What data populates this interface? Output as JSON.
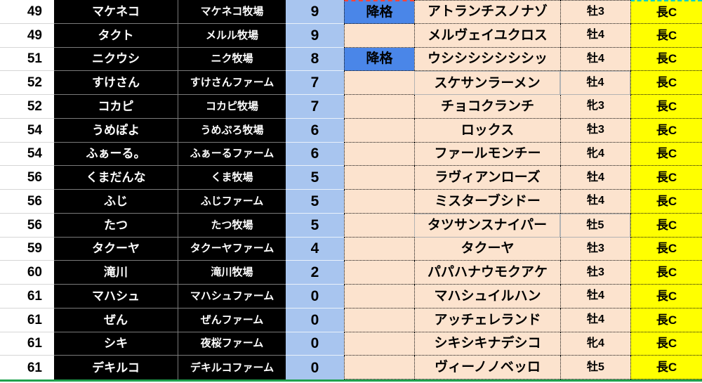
{
  "colors": {
    "player_cell_bg": "#000000",
    "player_cell_text": "#ffffff",
    "points_bg": "#a8c5ef",
    "demotion_bg": "#4a86e8",
    "peach_bg": "#fce3ce",
    "class_bg": "#ffff00",
    "sheet_boundary_green": "#1fa14d",
    "top_dash_red": "#ff4438",
    "top_dash_cyan": "#00d2c2"
  },
  "table": {
    "columns": [
      "rank",
      "player_name",
      "farm_name",
      "points",
      "status",
      "horse_name",
      "sex_age",
      "class"
    ],
    "demotion_label": "降格",
    "rows": [
      {
        "rank": "49",
        "player": "マケネコ",
        "farm": "マケネコ牧場",
        "points": "9",
        "status": "降格",
        "horse": "アトランチスノナゾ",
        "sex_age": "牡3",
        "class": "長C"
      },
      {
        "rank": "49",
        "player": "タクト",
        "farm": "メルル牧場",
        "points": "9",
        "status": "",
        "horse": "メルヴェイユクロス",
        "sex_age": "牡4",
        "class": "長C"
      },
      {
        "rank": "51",
        "player": "ニクウシ",
        "farm": "ニク牧場",
        "points": "8",
        "status": "降格",
        "horse": "ウシシシシシシシッ",
        "sex_age": "牡4",
        "class": "長C"
      },
      {
        "rank": "52",
        "player": "すけさん",
        "farm": "すけさんファーム",
        "points": "7",
        "status": "",
        "horse": "スケサンラーメン",
        "sex_age": "牡4",
        "class": "長C",
        "plain_border": true
      },
      {
        "rank": "52",
        "player": "コカピ",
        "farm": "コカピ牧場",
        "points": "7",
        "status": "",
        "horse": "チョコクランチ",
        "sex_age": "牝3",
        "class": "長C"
      },
      {
        "rank": "54",
        "player": "うめぽよ",
        "farm": "うめぷろ牧場",
        "points": "6",
        "status": "",
        "horse": "ロックス",
        "sex_age": "牡3",
        "class": "長C"
      },
      {
        "rank": "54",
        "player": "ふぁーる。",
        "farm": "ふぁーるファーム",
        "points": "6",
        "status": "",
        "horse": "ファールモンチー",
        "sex_age": "牝4",
        "class": "長C"
      },
      {
        "rank": "56",
        "player": "くまだんな",
        "farm": "くま牧場",
        "points": "5",
        "status": "",
        "horse": "ラヴィアンローズ",
        "sex_age": "牡4",
        "class": "長C"
      },
      {
        "rank": "56",
        "player": "ふじ",
        "farm": "ふじファーム",
        "points": "5",
        "status": "",
        "horse": "ミスターブシドー",
        "sex_age": "牡4",
        "class": "長C"
      },
      {
        "rank": "56",
        "player": "たつ",
        "farm": "たつ牧場",
        "points": "5",
        "status": "",
        "horse": "タツサンスナイパー",
        "sex_age": "牡5",
        "class": "長C",
        "plain_border": true
      },
      {
        "rank": "59",
        "player": "タクーヤ",
        "farm": "タクーヤファーム",
        "points": "4",
        "status": "",
        "horse": "タクーヤ",
        "sex_age": "牡3",
        "class": "長C"
      },
      {
        "rank": "60",
        "player": "滝川",
        "farm": "滝川牧場",
        "points": "2",
        "status": "",
        "horse": "パパハナウモクアケ",
        "sex_age": "牡3",
        "class": "長C"
      },
      {
        "rank": "61",
        "player": "マハシュ",
        "farm": "マハシュファーム",
        "points": "0",
        "status": "",
        "horse": "マハシュイルハン",
        "sex_age": "牡4",
        "class": "長C"
      },
      {
        "rank": "61",
        "player": "ぜん",
        "farm": "ぜんファーム",
        "points": "0",
        "status": "",
        "horse": "アッチェレランド",
        "sex_age": "牡4",
        "class": "長C"
      },
      {
        "rank": "61",
        "player": "シキ",
        "farm": "夜桜ファーム",
        "points": "0",
        "status": "",
        "horse": "シキシキナデシコ",
        "sex_age": "牝4",
        "class": "長C"
      },
      {
        "rank": "61",
        "player": "デキルコ",
        "farm": "デキルコファーム",
        "points": "0",
        "status": "",
        "horse": "ヴィーノノベッロ",
        "sex_age": "牡5",
        "class": "長C"
      }
    ]
  }
}
